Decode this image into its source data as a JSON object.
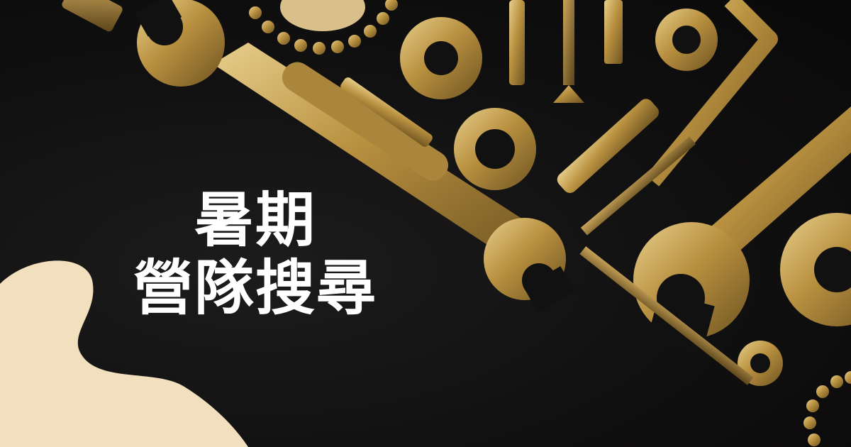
{
  "banner": {
    "title_line1": "暑期",
    "title_line2": "營隊搜尋",
    "background_color": "#111010",
    "accent_color": "#c9a24c",
    "blob_color": "#f1dfbd"
  },
  "icons": [
    "wrench-icon",
    "screw-icon",
    "nut-icon",
    "washer-icon",
    "bolt-icon",
    "wall-plug-icon",
    "drill-bit-icon",
    "allen-key-icon",
    "bead-chain-icon"
  ]
}
